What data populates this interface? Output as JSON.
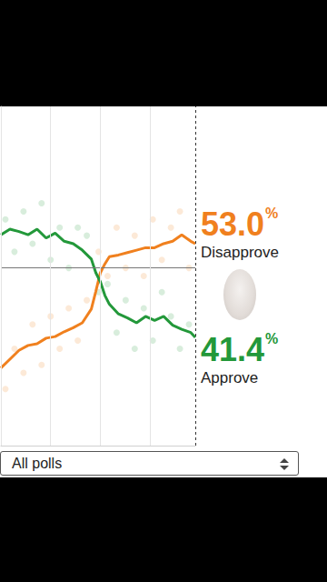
{
  "chart_data": {
    "type": "line",
    "x": [
      0,
      10,
      20,
      30,
      40,
      50,
      60,
      70,
      80,
      90,
      100,
      105,
      110,
      115,
      120,
      130,
      140,
      150,
      160,
      170,
      180,
      190,
      200,
      205,
      210,
      215
    ],
    "xlim": [
      0,
      215
    ],
    "xticks": [
      0,
      55,
      110,
      165
    ],
    "ylim": [
      28,
      70
    ],
    "yticks": [
      50
    ],
    "grid": true,
    "tick_labels": false,
    "series": [
      {
        "name": "Disapprove",
        "color": "#f0801e",
        "end_label": "53.0%",
        "values": [
          37.6,
          38.7,
          39.8,
          40.4,
          40.6,
          41.3,
          41.5,
          42.1,
          42.6,
          43.2,
          44.9,
          47.1,
          49.4,
          50.5,
          51.4,
          51.6,
          51.9,
          52.2,
          52.5,
          52.5,
          53.0,
          53.3,
          54.1,
          53.7,
          53.3,
          53.0
        ]
      },
      {
        "name": "Approve",
        "color": "#23983a",
        "end_label": "41.4%",
        "values": [
          54.1,
          54.8,
          54.5,
          54.1,
          54.8,
          53.7,
          54.3,
          53.3,
          53.0,
          52.2,
          51.1,
          49.4,
          48.3,
          46.6,
          45.5,
          44.3,
          43.8,
          43.2,
          44.0,
          43.5,
          44.0,
          42.9,
          42.4,
          42.2,
          42.0,
          41.4
        ]
      },
      {
        "type": "scatter",
        "color": "#f0801e",
        "x": [
          5,
          15,
          25,
          35,
          45,
          55,
          65,
          75,
          85,
          95,
          108,
          118,
          128,
          138,
          148,
          158,
          168,
          178,
          188,
          198,
          208
        ],
        "values": [
          35,
          40,
          37,
          43,
          38,
          44,
          40,
          45,
          41,
          46,
          52,
          49,
          55,
          50,
          54,
          49,
          56,
          51,
          55,
          57,
          50
        ]
      },
      {
        "type": "scatter",
        "color": "#23983a",
        "x": [
          5,
          15,
          25,
          35,
          45,
          55,
          65,
          75,
          85,
          95,
          108,
          118,
          128,
          138,
          148,
          158,
          168,
          178,
          188,
          198,
          208
        ],
        "values": [
          56,
          52,
          57,
          53,
          58,
          51,
          55,
          50,
          55,
          54,
          47,
          48,
          42,
          46,
          40,
          45,
          41,
          47,
          44,
          40,
          43
        ]
      }
    ]
  },
  "filter": {
    "selected": "All polls"
  }
}
